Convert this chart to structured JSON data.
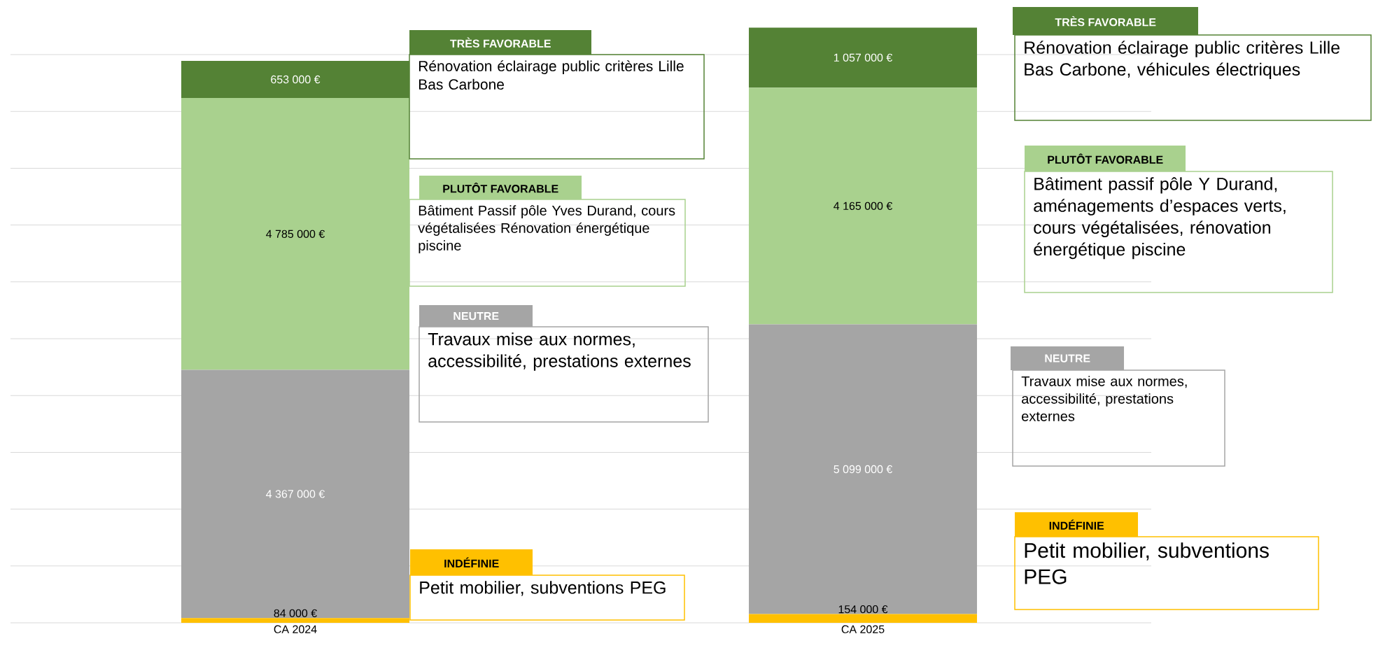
{
  "chart_data": {
    "type": "bar",
    "stacked": true,
    "categories": [
      "CA 2024",
      "CA 2025"
    ],
    "series": [
      {
        "name": "INDÉFINIE",
        "color": "#ffc000",
        "values": [
          84000,
          154000
        ],
        "value_labels": [
          "84 000 €",
          "154 000 €"
        ]
      },
      {
        "name": "NEUTRE",
        "color": "#a5a5a5",
        "values": [
          4367000,
          5099000
        ],
        "value_labels": [
          "4 367 000 €",
          "5 099 000 €"
        ]
      },
      {
        "name": "PLUTÔT FAVORABLE",
        "color": "#a9d18e",
        "values": [
          4785000,
          4165000
        ],
        "value_labels": [
          "4 785 000 €",
          "4 165 000 €"
        ]
      },
      {
        "name": "TRÈS FAVORABLE",
        "color": "#548235",
        "values": [
          653000,
          1057000
        ],
        "value_labels": [
          "653 000 €",
          "1 057 000 €"
        ]
      }
    ],
    "ylim": [
      0,
      10500000
    ],
    "yticks": [
      {
        "value": 0,
        "label": null
      },
      {
        "value": 1000000,
        "label": null
      },
      {
        "value": 2000000,
        "label": null
      },
      {
        "value": 3000000,
        "label": null
      },
      {
        "value": 4000000,
        "label": null
      },
      {
        "value": 5000000,
        "label": null
      },
      {
        "value": 6000000,
        "label": null
      },
      {
        "value": 7000000,
        "label": null
      },
      {
        "value": 8000000,
        "label": null
      },
      {
        "value": 9000000,
        "label": null
      },
      {
        "value": 10000000,
        "label": null
      }
    ],
    "grid": "y",
    "tick_labels": "x",
    "annotations": [
      "Petit mobilier, subventions PEG",
      "Travaux mise aux normes, accessibilité, prestations externes",
      "Bâtiment Passif pôle Yves Durand, cours végétalisées Rénovation énergétique piscine",
      "Rénovation éclairage public critères Lille Bas Carbone",
      "Petit mobilier, subventions PEG",
      "Travaux mise aux normes, accessibilité, prestations externes",
      "Bâtiment passif pôle Y Durand, aménagements d’espaces verts, cours végétalisées, rénovation énergétique piscine",
      "Rénovation éclairage public critères Lille Bas Carbone, véhicules électriques"
    ]
  }
}
